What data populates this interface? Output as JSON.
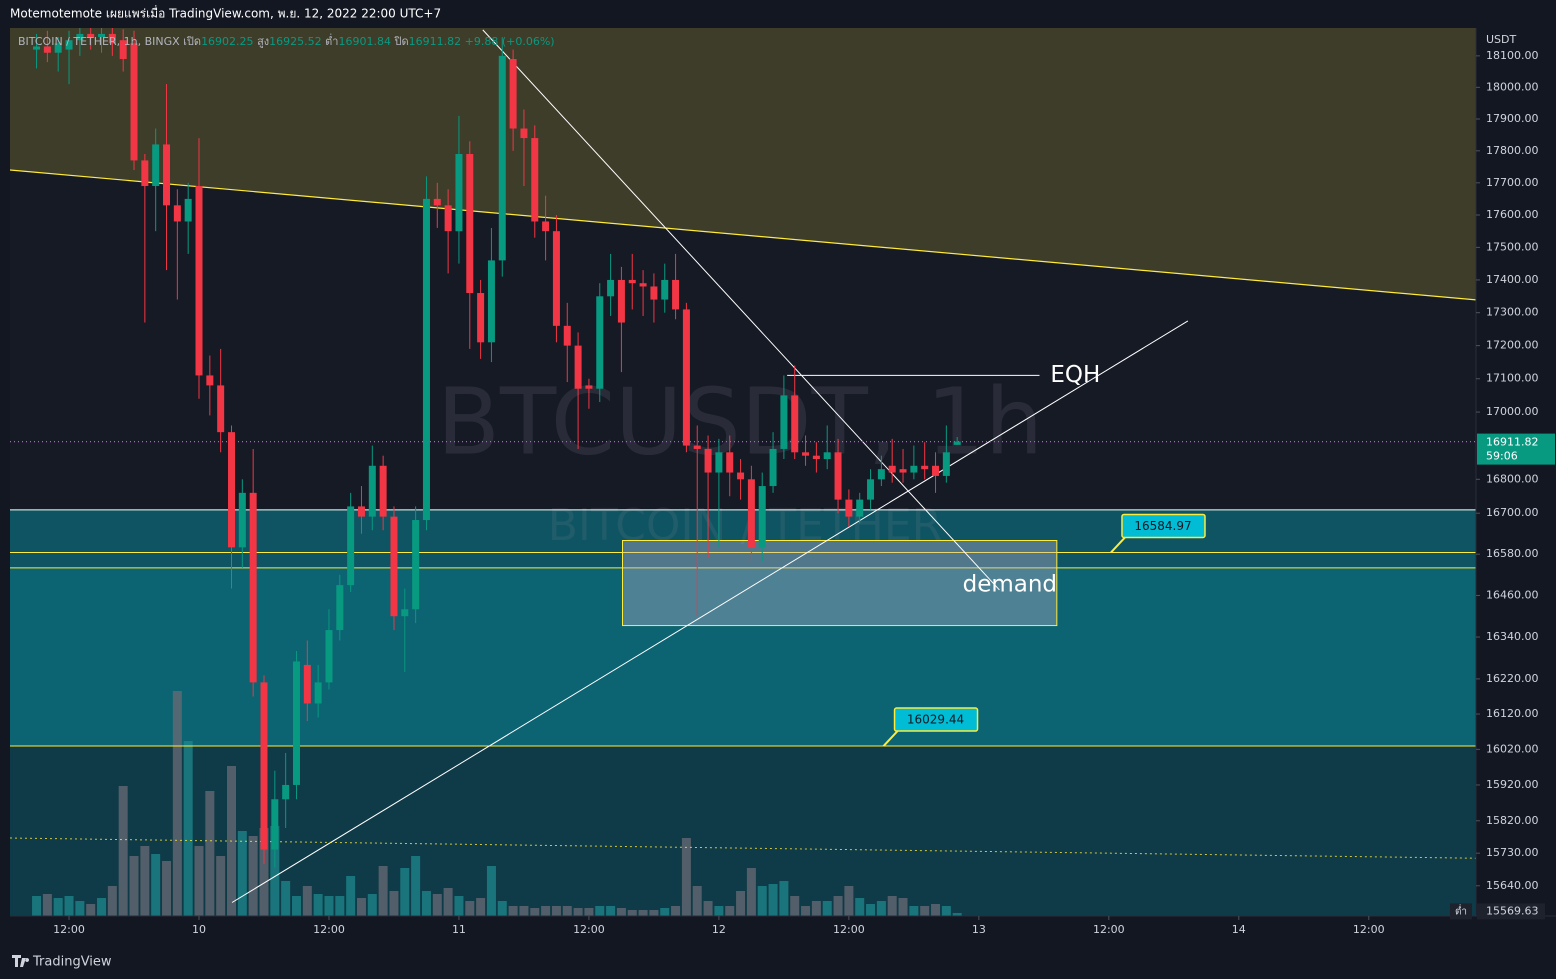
{
  "header": "Motemotemote เผยแพร่เมื่อ TradingView.com, พ.ย. 12, 2022 22:00 UTC+7",
  "footer": "TradingView",
  "chart_data": {
    "type": "candlestick",
    "title": "BITCOIN / TETHER, 1h, BINGX",
    "ohlc_labels": [
      "เปิด",
      "สูง",
      "ต่ำ",
      "ปิด"
    ],
    "change": "+9.88 (+0.06%)",
    "watermark": [
      "BTCUSDT, 1h",
      "BITCOIN / TETHER"
    ],
    "unit": "USDT",
    "countdown": "59:06",
    "low_marker": {
      "label": "ต่ำ",
      "value": 15569.63
    },
    "log_scale": true,
    "grid": false,
    "colors": {
      "up": "#089981",
      "down": "#f23645",
      "up_volume": "#1e8a8c",
      "down_volume": "#6a6b74",
      "last_line": "#b15fd0",
      "trend": "#ffeb3b",
      "trend_fill": "#3e3d29",
      "line": "#ffffff",
      "label_fill": "#00bcd4"
    },
    "x": [
      -3,
      -2,
      -1,
      0,
      1,
      2,
      3,
      4,
      5,
      6,
      7,
      8,
      9,
      10,
      11,
      12,
      13,
      14,
      15,
      16,
      17,
      18,
      19,
      20,
      21,
      22,
      23,
      24,
      25,
      26,
      27,
      28,
      29,
      30,
      31,
      32,
      33,
      34,
      35,
      36,
      37,
      38,
      39,
      40,
      41,
      42,
      43,
      44,
      45,
      46,
      47,
      48,
      49,
      50,
      51,
      52,
      53,
      54,
      55,
      56,
      57,
      58,
      59,
      60,
      61,
      62,
      63,
      64,
      65,
      66,
      67,
      68,
      69,
      70,
      71,
      72,
      73,
      74,
      75,
      76,
      77,
      78,
      79,
      80,
      81,
      82
    ],
    "open": [
      18120,
      18130,
      18110,
      18120,
      18150,
      18170,
      18160,
      18170,
      18150,
      18140,
      17770,
      17690,
      17820,
      17630,
      17580,
      17690,
      17110,
      17080,
      16940,
      16600,
      16760,
      16210,
      15740,
      15880,
      15920,
      16260,
      16150,
      16210,
      16360,
      16490,
      16720,
      16690,
      16840,
      16690,
      16400,
      16420,
      16680,
      17650,
      17630,
      17550,
      17790,
      17360,
      17210,
      17460,
      18090,
      17870,
      17840,
      17580,
      17550,
      17260,
      17200,
      17080,
      17070,
      17350,
      17400,
      17400,
      17390,
      17380,
      17340,
      17400,
      17310,
      16900,
      16890,
      16820,
      16880,
      16820,
      16800,
      16600,
      16780,
      16890,
      17050,
      16880,
      16870,
      16860,
      16880,
      16740,
      16690,
      16740,
      16800,
      16840,
      16830,
      16820,
      16840,
      16840,
      16810,
      16902.25
    ],
    "high": [
      18170,
      18180,
      18160,
      18180,
      18190,
      18190,
      18190,
      18190,
      18185,
      18180,
      17790,
      17870,
      18010,
      17680,
      17700,
      17840,
      17170,
      17190,
      16960,
      16800,
      16890,
      16230,
      15960,
      16010,
      16300,
      16330,
      16260,
      16420,
      16520,
      16760,
      16780,
      16900,
      16870,
      16720,
      16480,
      16720,
      17720,
      17700,
      17680,
      17910,
      17830,
      17400,
      17560,
      18160,
      18120,
      17930,
      17880,
      17660,
      17600,
      17330,
      17240,
      17100,
      17390,
      17480,
      17440,
      17480,
      17430,
      17420,
      17450,
      17480,
      17330,
      16960,
      16930,
      16920,
      16930,
      16860,
      16840,
      16820,
      16940,
      17110,
      17140,
      16930,
      16910,
      16960,
      16920,
      16770,
      16760,
      16830,
      16870,
      16920,
      16890,
      16900,
      16910,
      16880,
      16960,
      16925.52
    ],
    "low": [
      18060,
      18080,
      18050,
      18010,
      18100,
      18120,
      18110,
      18100,
      18050,
      17740,
      17270,
      17550,
      17430,
      17340,
      17480,
      17040,
      16990,
      16880,
      16480,
      16540,
      16170,
      15700,
      15690,
      15800,
      15880,
      16100,
      16110,
      16190,
      16330,
      16470,
      16640,
      16650,
      16650,
      16360,
      16240,
      16380,
      16650,
      17560,
      17420,
      17450,
      17190,
      17160,
      17150,
      17410,
      17800,
      17690,
      17530,
      17460,
      17210,
      17090,
      16890,
      17010,
      17030,
      17290,
      17120,
      17310,
      17290,
      17270,
      17300,
      17280,
      16880,
      16400,
      16570,
      16600,
      16750,
      16740,
      16560,
      16560,
      16760,
      16860,
      16860,
      16840,
      16820,
      16830,
      16700,
      16660,
      16670,
      16710,
      16780,
      16790,
      16790,
      16800,
      16800,
      16760,
      16790,
      16901.84
    ],
    "close": [
      18130,
      18110,
      18140,
      18150,
      18170,
      18160,
      18170,
      18140,
      18090,
      17770,
      17690,
      17820,
      17630,
      17580,
      17650,
      17110,
      17080,
      16940,
      16600,
      16760,
      16210,
      15740,
      15880,
      15920,
      16270,
      16150,
      16210,
      16360,
      16490,
      16720,
      16690,
      16840,
      16690,
      16400,
      16420,
      16680,
      17650,
      17630,
      17550,
      17790,
      17360,
      17210,
      17460,
      18100,
      17870,
      17840,
      17580,
      17550,
      17260,
      17200,
      17070,
      17070,
      17350,
      17400,
      17270,
      17390,
      17380,
      17340,
      17400,
      17310,
      16900,
      16890,
      16820,
      16880,
      16820,
      16800,
      16600,
      16780,
      16890,
      17050,
      16880,
      16870,
      16860,
      16880,
      16740,
      16690,
      16740,
      16800,
      16830,
      16820,
      16820,
      16840,
      16830,
      16810,
      16880,
      16911.82
    ],
    "volume": [
      20,
      22,
      18,
      20,
      15,
      12,
      18,
      30,
      130,
      60,
      70,
      62,
      55,
      225,
      175,
      70,
      125,
      60,
      150,
      85,
      80,
      88,
      90,
      35,
      20,
      30,
      22,
      20,
      20,
      40,
      18,
      22,
      50,
      25,
      48,
      60,
      25,
      22,
      28,
      20,
      15,
      18,
      50,
      15,
      10,
      10,
      8,
      10,
      10,
      10,
      8,
      8,
      10,
      10,
      8,
      6,
      6,
      6,
      8,
      10,
      78,
      30,
      15,
      10,
      10,
      25,
      48,
      30,
      32,
      35,
      20,
      10,
      15,
      15,
      20,
      30,
      18,
      12,
      15,
      20,
      18,
      10,
      10,
      12,
      10,
      3
    ],
    "xlim": [
      -5.45,
      129.9
    ],
    "ylim": [
      15557,
      18189
    ],
    "xticks": [
      {
        "value": 0,
        "label": "12:00"
      },
      {
        "value": 12,
        "label": "10"
      },
      {
        "value": 24,
        "label": "12:00"
      },
      {
        "value": 36,
        "label": "11"
      },
      {
        "value": 48,
        "label": "12:00"
      },
      {
        "value": 60,
        "label": "12"
      },
      {
        "value": 72,
        "label": "12:00"
      },
      {
        "value": 84,
        "label": "13"
      },
      {
        "value": 96,
        "label": "12:00"
      },
      {
        "value": 108,
        "label": "14"
      },
      {
        "value": 120,
        "label": "12:00"
      }
    ],
    "yticks": [
      {
        "value": 18100,
        "label": "18100.00"
      },
      {
        "value": 18000,
        "label": "18000.00"
      },
      {
        "value": 17900,
        "label": "17900.00"
      },
      {
        "value": 17800,
        "label": "17800.00"
      },
      {
        "value": 17700,
        "label": "17700.00"
      },
      {
        "value": 17600,
        "label": "17600.00"
      },
      {
        "value": 17500,
        "label": "17500.00"
      },
      {
        "value": 17400,
        "label": "17400.00"
      },
      {
        "value": 17300,
        "label": "17300.00"
      },
      {
        "value": 17200,
        "label": "17200.00"
      },
      {
        "value": 17100,
        "label": "17100.00"
      },
      {
        "value": 17000,
        "label": "17000.00"
      },
      {
        "value": 16800,
        "label": "16800.00"
      },
      {
        "value": 16700,
        "label": "16700.00"
      },
      {
        "value": 16580,
        "label": "16580.00"
      },
      {
        "value": 16460,
        "label": "16460.00"
      },
      {
        "value": 16340,
        "label": "16340.00"
      },
      {
        "value": 16220,
        "label": "16220.00"
      },
      {
        "value": 16120,
        "label": "16120.00"
      },
      {
        "value": 16020,
        "label": "16020.00"
      },
      {
        "value": 15920,
        "label": "15920.00"
      },
      {
        "value": 15820,
        "label": "15820.00"
      },
      {
        "value": 15730,
        "label": "15730.00"
      },
      {
        "value": 15640,
        "label": "15640.00"
      }
    ],
    "zones": [
      {
        "from": 16710,
        "to": 16540,
        "color": "#0f5462"
      },
      {
        "from": 16540,
        "to": 16029.44,
        "color": "#0c6372"
      },
      {
        "from": 16029.44,
        "to": 15557,
        "color": "#0f3a47"
      }
    ],
    "trend_zone": {
      "x": [
        -5.45,
        129.9
      ],
      "y": [
        17740,
        17339
      ]
    },
    "lines": [
      {
        "x": [
          38.2,
          85.9
        ],
        "y": [
          18183,
          16476
        ]
      },
      {
        "x": [
          15.05,
          103.3
        ],
        "y": [
          15594,
          17275
        ]
      },
      {
        "x": [
          66.3,
          89.6
        ],
        "y": [
          17110,
          17110
        ]
      },
      {
        "x": [
          -5.45,
          129.9
        ],
        "y": [
          15772,
          15716
        ],
        "dash": true
      }
    ],
    "box": {
      "x": [
        51.1,
        91.2
      ],
      "y": [
        16620,
        16373
      ]
    },
    "levels": [
      {
        "value": 16710,
        "color": "#ffffff"
      },
      {
        "value": 16584.97,
        "color": "#ffeb3b",
        "label_x": 96.2
      },
      {
        "value": 16540,
        "color": "#ffeb3b"
      },
      {
        "value": 16029.44,
        "color": "#ffeb3b",
        "label_x": 75.2
      }
    ],
    "annotations": [
      {
        "text": "EQH",
        "x": 90.6,
        "y": 17110
      },
      {
        "text": "demand",
        "x": 82.5,
        "y": 16490
      }
    ]
  }
}
